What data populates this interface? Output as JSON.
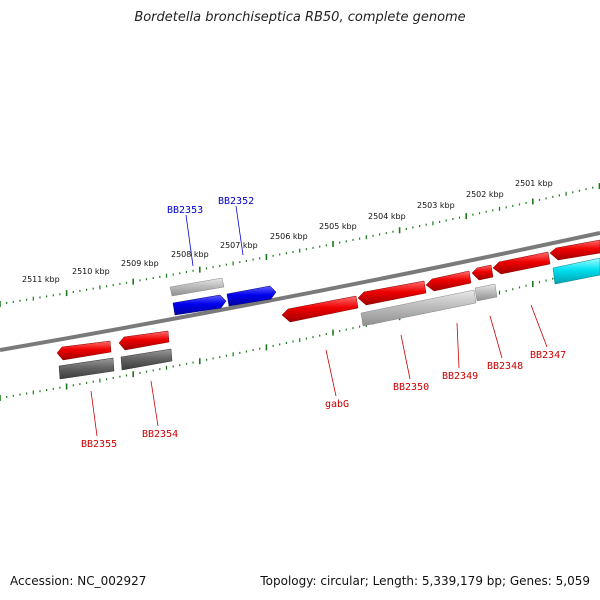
{
  "title": "Bordetella bronchiseptica RB50, complete genome",
  "footer": {
    "accession": "Accession: NC_002927",
    "topology": "Topology: circular; Length: 5,339,179 bp; Genes: 5,059"
  },
  "colors": {
    "forward_label": "#0000cc",
    "reverse_label": "#cc0000",
    "backbone": "#7a7a7a",
    "ticks": "#1a7a1a"
  },
  "kbp_labels": [
    "2511 kbp",
    "2510 kbp",
    "2509 kbp",
    "2508 kbp",
    "2507 kbp",
    "2506 kbp",
    "2505 kbp",
    "2504 kbp",
    "2503 kbp",
    "2502 kbp",
    "2501 kbp"
  ],
  "gene_labels": {
    "forward": [
      "BB2353",
      "BB2352"
    ],
    "reverse": [
      "BB2355",
      "BB2354",
      "gabG",
      "BB2350",
      "BB2349",
      "BB2348",
      "BB2347"
    ]
  }
}
